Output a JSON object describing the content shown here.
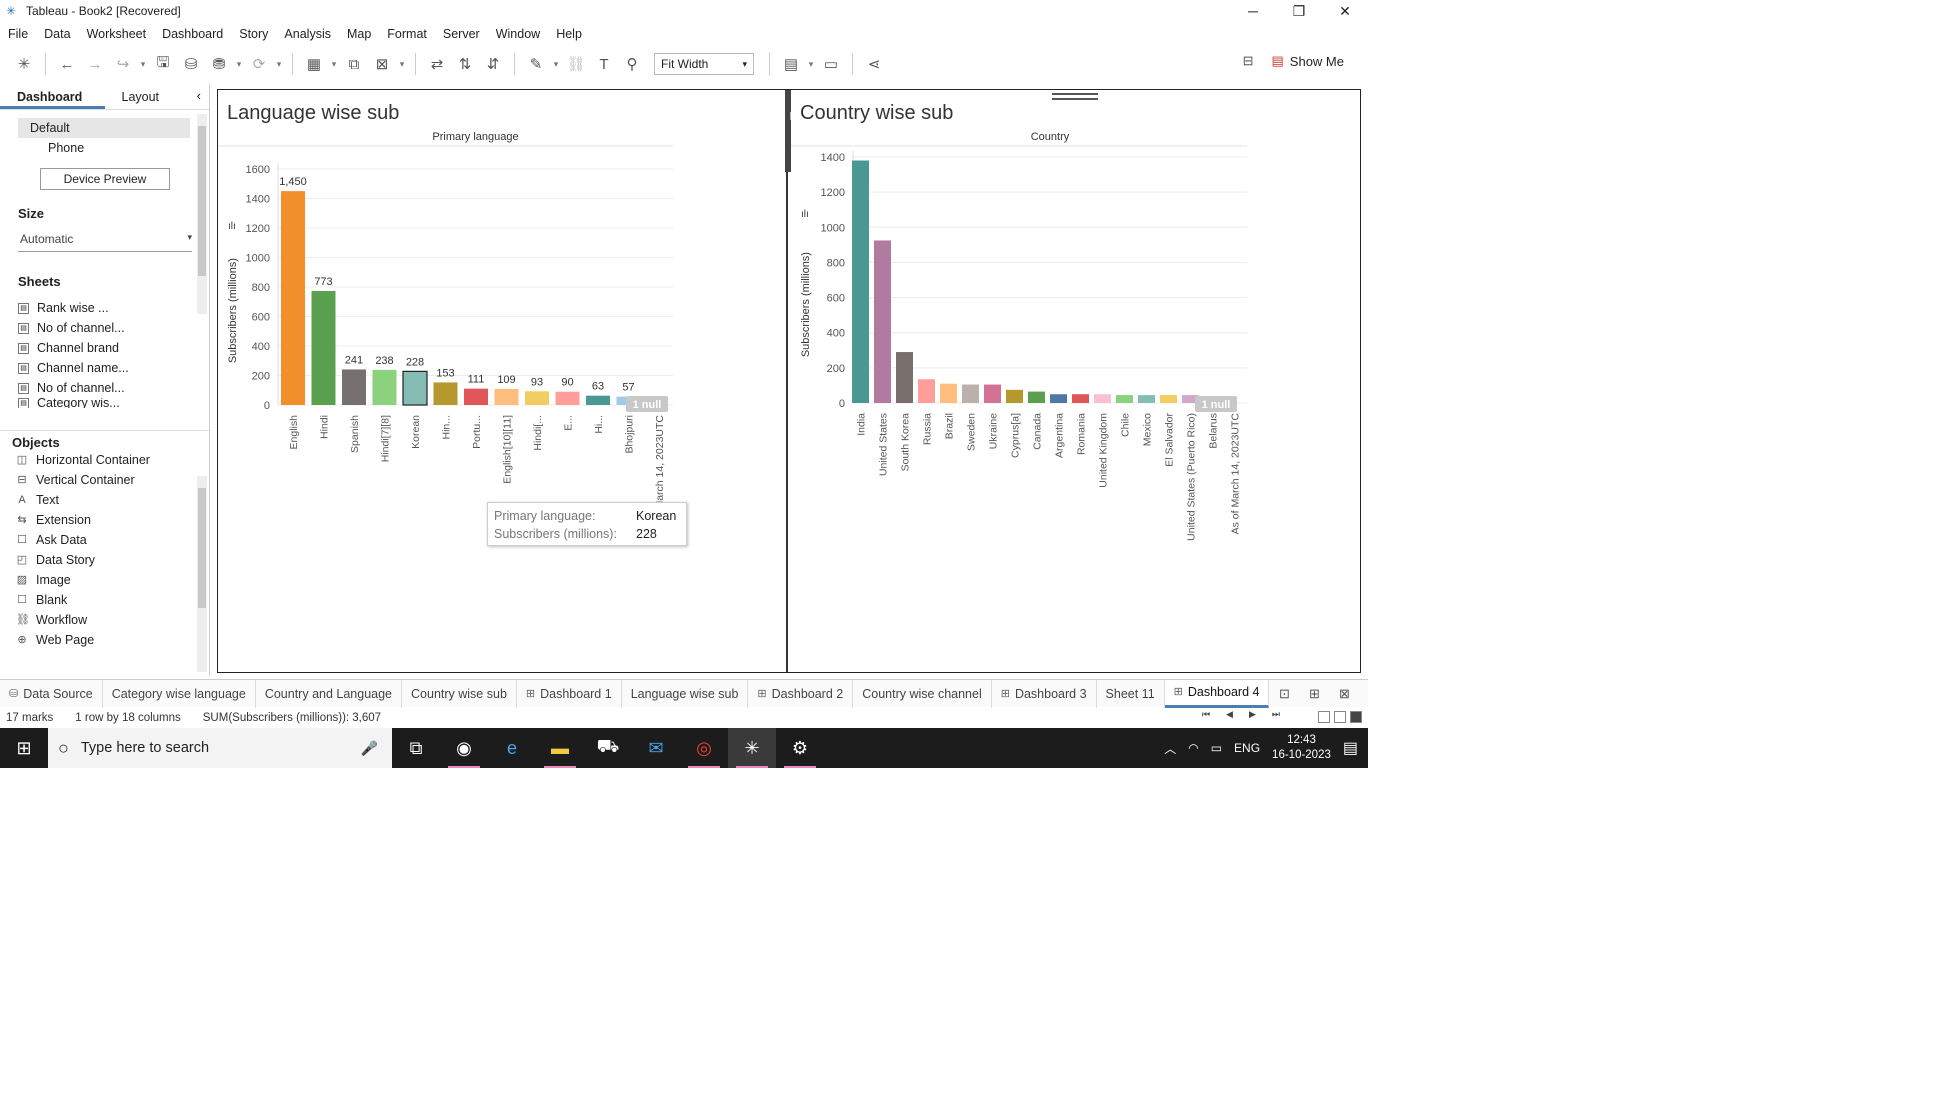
{
  "window": {
    "title": "Tableau - Book2 [Recovered]"
  },
  "menu": [
    "File",
    "Data",
    "Worksheet",
    "Dashboard",
    "Story",
    "Analysis",
    "Map",
    "Format",
    "Server",
    "Window",
    "Help"
  ],
  "toolbar": {
    "fit_label": "Fit Width",
    "show_me_label": "Show Me"
  },
  "left_pane": {
    "tabs": [
      "Dashboard",
      "Layout"
    ],
    "devices": [
      "Default",
      "Phone"
    ],
    "device_preview_label": "Device Preview",
    "size_heading": "Size",
    "size_value": "Automatic",
    "sheets_heading": "Sheets",
    "sheets": [
      "Rank wise ...",
      "No of channel...",
      "Channel brand",
      "Channel name...",
      "No of channel...",
      "Category wis..."
    ],
    "objects_heading": "Objects",
    "objects": [
      "Horizontal Container",
      "Vertical Container",
      "Text",
      "Extension",
      "Ask Data",
      "Data Story",
      "Image",
      "Blank",
      "Workflow",
      "Web Page"
    ]
  },
  "dashboard": {
    "panel1_title": "Language wise sub",
    "panel2_title": "Country wise sub",
    "null_badge": "1 null",
    "tooltip": {
      "k1": "Primary language:",
      "v1": "Korean",
      "k2": "Subscribers (millions):",
      "v2": "228"
    }
  },
  "chart_data": [
    {
      "type": "bar",
      "title": "Language wise sub",
      "column_header": "Primary language",
      "ylabel": "Subscribers (millions)",
      "ylim": [
        0,
        1600
      ],
      "yticks": [
        0,
        200,
        400,
        600,
        800,
        1000,
        1200,
        1400,
        1600
      ],
      "categories": [
        "English",
        "Hindi",
        "Spanish",
        "Hindi[7][8]",
        "Korean",
        "Hin...",
        "Portu...",
        "English[10][11]",
        "Hindi[...",
        "E...",
        "Hi...",
        "Bhojpuri",
        "As of March 14, 2023UTC"
      ],
      "values": [
        1450,
        773,
        241,
        238,
        228,
        153,
        111,
        109,
        93,
        90,
        63,
        57,
        null
      ],
      "labels": [
        "1,450",
        "773",
        "241",
        "238",
        "228",
        "153",
        "111",
        "109",
        "93",
        "90",
        "63",
        "57",
        ""
      ],
      "colors": [
        "#f28e2b",
        "#59a14f",
        "#76706e",
        "#8cd17d",
        "#86bcb6",
        "#b6992d",
        "#e15759",
        "#ffbe7d",
        "#f1ce63",
        "#ff9d9a",
        "#499894",
        "#a0cbe8",
        null
      ]
    },
    {
      "type": "bar",
      "title": "Country wise sub",
      "column_header": "Country",
      "ylabel": "Subscribers (millions)",
      "ylim": [
        0,
        1400
      ],
      "yticks": [
        0,
        200,
        400,
        600,
        800,
        1000,
        1200,
        1400
      ],
      "categories": [
        "India",
        "United States",
        "South Korea",
        "Russia",
        "Brazil",
        "Sweden",
        "Ukraine",
        "Cyprus[a]",
        "Canada",
        "Argentina",
        "Romania",
        "United Kingdom",
        "Chile",
        "Mexico",
        "El Salvador",
        "United States (Puerto Rico)",
        "Belarus",
        "As of March 14, 2023UTC"
      ],
      "values": [
        1380,
        925,
        290,
        135,
        110,
        105,
        105,
        75,
        65,
        50,
        50,
        50,
        45,
        45,
        45,
        45,
        40,
        null
      ],
      "colors": [
        "#499894",
        "#b07aa1",
        "#79706e",
        "#ff9d9a",
        "#ffbe7d",
        "#bab0ac",
        "#d37295",
        "#b6992d",
        "#59a14f",
        "#4e79a7",
        "#e15759",
        "#fabfd2",
        "#8cd17d",
        "#86bcb6",
        "#f1ce63",
        "#d4a6c8",
        "#f28e2b",
        null
      ]
    }
  ],
  "sheet_tabs": [
    {
      "label": "Data Source",
      "icon": "database-icon"
    },
    {
      "label": "Category wise language",
      "icon": ""
    },
    {
      "label": "Country and Language",
      "icon": ""
    },
    {
      "label": "Country wise sub",
      "icon": ""
    },
    {
      "label": "Dashboard 1",
      "icon": "dashboard-icon"
    },
    {
      "label": "Language wise sub",
      "icon": ""
    },
    {
      "label": "Dashboard 2",
      "icon": "dashboard-icon"
    },
    {
      "label": "Country wise channel",
      "icon": ""
    },
    {
      "label": "Dashboard 3",
      "icon": "dashboard-icon"
    },
    {
      "label": "Sheet 11",
      "icon": ""
    },
    {
      "label": "Dashboard 4",
      "icon": "dashboard-icon"
    }
  ],
  "status": {
    "marks": "17 marks",
    "rows": "1 row by 18 columns",
    "sum": "SUM(Subscribers (millions)): 3,607"
  },
  "taskbar": {
    "search_placeholder": "Type here to search",
    "lang": "ENG",
    "time": "12:43",
    "date": "16-10-2023"
  }
}
